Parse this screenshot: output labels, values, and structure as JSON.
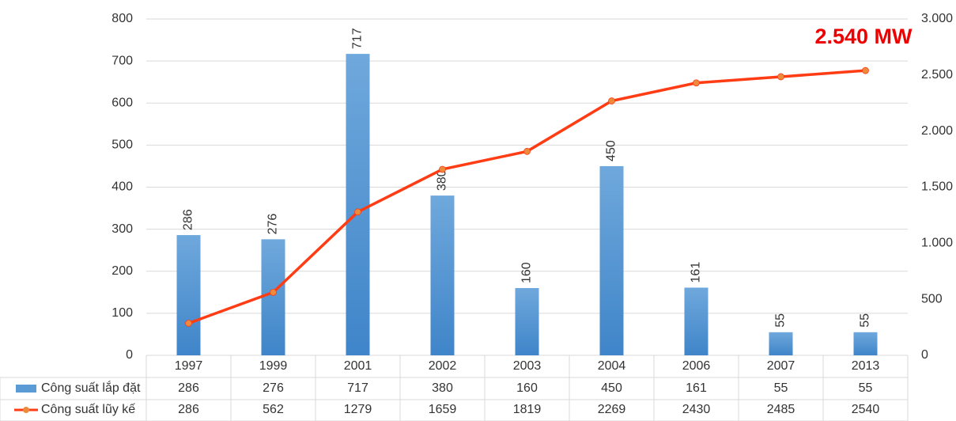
{
  "chart_data": {
    "type": "bar",
    "annotation": "2.540 MW",
    "categories": [
      "1997",
      "1999",
      "2001",
      "2002",
      "2003",
      "2004",
      "2006",
      "2007",
      "2013"
    ],
    "series": [
      {
        "name": "Công suất lắp đặt",
        "type": "bar",
        "color": "#5b9bd5",
        "values": [
          286,
          276,
          717,
          380,
          160,
          450,
          161,
          55,
          55
        ]
      },
      {
        "name": "Công suất lũy kế",
        "type": "line",
        "axis": "y2",
        "color": "#ff3c14",
        "marker_color": "#ed8b3c",
        "values": [
          286,
          562,
          1279,
          1659,
          1819,
          2269,
          2430,
          2485,
          2540
        ]
      }
    ],
    "ylim": [
      0,
      800
    ],
    "yticks": [
      0,
      100,
      200,
      300,
      400,
      500,
      600,
      700,
      800
    ],
    "y2lim": [
      0,
      3000
    ],
    "y2ticks": [
      0,
      500,
      {
        "value": 1000,
        "label": "1.000"
      },
      {
        "value": 1500,
        "label": "1.500"
      },
      {
        "value": 2000,
        "label": "2.000"
      },
      {
        "value": 2500,
        "label": "2.500"
      },
      {
        "value": 3000,
        "label": "3.000"
      }
    ],
    "grid": true
  }
}
